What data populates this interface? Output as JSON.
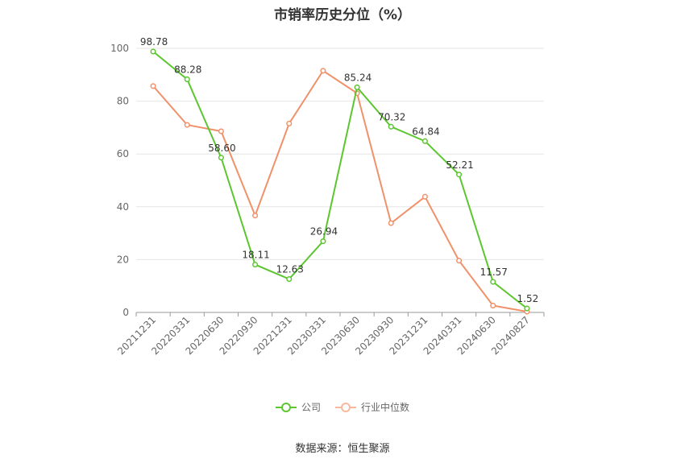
{
  "chart_data": {
    "type": "line",
    "title": "市销率历史分位（%）",
    "categories": [
      "20211231",
      "20220331",
      "20220630",
      "20220930",
      "20221231",
      "20230331",
      "20230630",
      "20230930",
      "20231231",
      "20240331",
      "20240630",
      "20240827"
    ],
    "ylim": [
      0,
      100
    ],
    "yticks": [
      0,
      20,
      40,
      60,
      80,
      100
    ],
    "grid": true,
    "legend_position": "bottom",
    "series": [
      {
        "name": "公司",
        "color": "#5cc630",
        "values": [
          98.78,
          88.28,
          58.6,
          18.11,
          12.63,
          26.94,
          85.24,
          70.32,
          64.84,
          52.21,
          11.57,
          1.52
        ],
        "labels": [
          "98.78",
          "88.28",
          "58.60",
          "18.11",
          "12.63",
          "26.94",
          "85.24",
          "70.32",
          "64.84",
          "52.21",
          "11.57",
          "1.52"
        ]
      },
      {
        "name": "行业中位数",
        "color": "#f0916a",
        "values": [
          85.7,
          71.0,
          68.6,
          36.7,
          71.5,
          91.5,
          83.0,
          33.8,
          43.8,
          19.6,
          2.6,
          0.3
        ]
      }
    ]
  },
  "source": "数据来源：恒生聚源"
}
